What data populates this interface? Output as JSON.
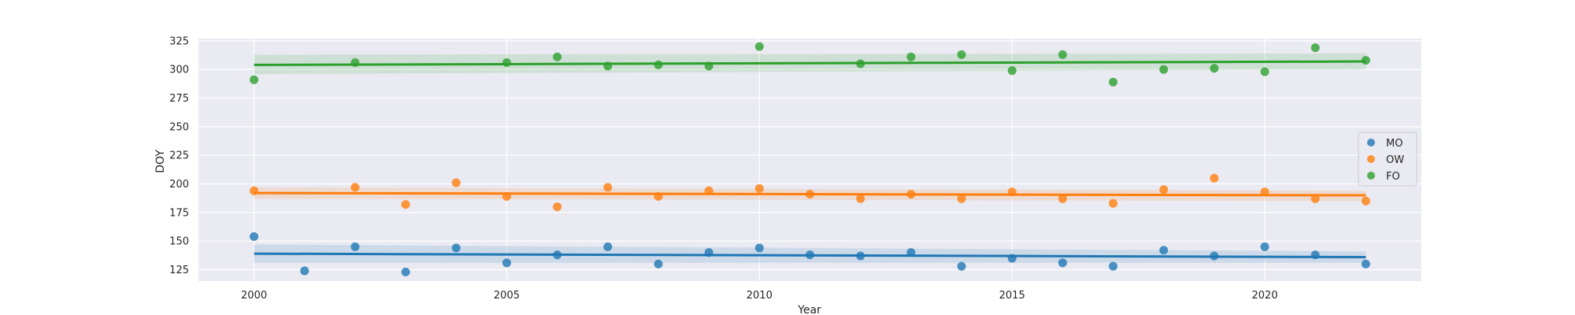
{
  "chart_data": {
    "type": "scatter",
    "title": "",
    "xlabel": "Year",
    "ylabel": "DOY",
    "xlim": [
      1998.9,
      2023.1
    ],
    "ylim": [
      115,
      327
    ],
    "xticks": [
      2000,
      2005,
      2010,
      2015,
      2020
    ],
    "yticks": [
      125,
      150,
      175,
      200,
      225,
      250,
      275,
      300,
      325
    ],
    "grid": true,
    "legend_position": "right",
    "series": [
      {
        "name": "MO",
        "color": "#1f77b4",
        "x": [
          2000,
          2001,
          2002,
          2003,
          2004,
          2005,
          2006,
          2007,
          2008,
          2009,
          2010,
          2011,
          2012,
          2013,
          2014,
          2015,
          2016,
          2017,
          2018,
          2019,
          2020,
          2021,
          2022
        ],
        "y": [
          154,
          124,
          145,
          123,
          144,
          131,
          138,
          145,
          130,
          140,
          144,
          138,
          137,
          140,
          128,
          135,
          131,
          128,
          142,
          137,
          145,
          138,
          130
        ],
        "trend": [
          139,
          136
        ],
        "band_upper": [
          147,
          141
        ],
        "band_lower": [
          131,
          131
        ]
      },
      {
        "name": "OW",
        "color": "#ff7f0e",
        "x": [
          2000,
          2002,
          2003,
          2004,
          2005,
          2006,
          2007,
          2008,
          2009,
          2010,
          2011,
          2012,
          2013,
          2014,
          2015,
          2016,
          2017,
          2018,
          2019,
          2020,
          2021,
          2022
        ],
        "y": [
          194,
          197,
          182,
          201,
          189,
          180,
          197,
          189,
          194,
          196,
          191,
          187,
          191,
          187,
          193,
          187,
          183,
          195,
          205,
          193,
          187,
          185
        ],
        "trend": [
          192,
          190
        ],
        "band_upper": [
          197,
          194
        ],
        "band_lower": [
          187,
          185
        ]
      },
      {
        "name": "FO",
        "color": "#2ca02c",
        "x": [
          2000,
          2002,
          2005,
          2006,
          2007,
          2008,
          2009,
          2010,
          2012,
          2013,
          2014,
          2015,
          2016,
          2017,
          2018,
          2019,
          2020,
          2021,
          2022
        ],
        "y": [
          291,
          306,
          306,
          311,
          303,
          304,
          303,
          320,
          305,
          311,
          313,
          299,
          313,
          289,
          300,
          301,
          298,
          319,
          308
        ],
        "trend": [
          304,
          307
        ],
        "band_upper": [
          313,
          314
        ],
        "band_lower": [
          296,
          300
        ]
      }
    ]
  }
}
